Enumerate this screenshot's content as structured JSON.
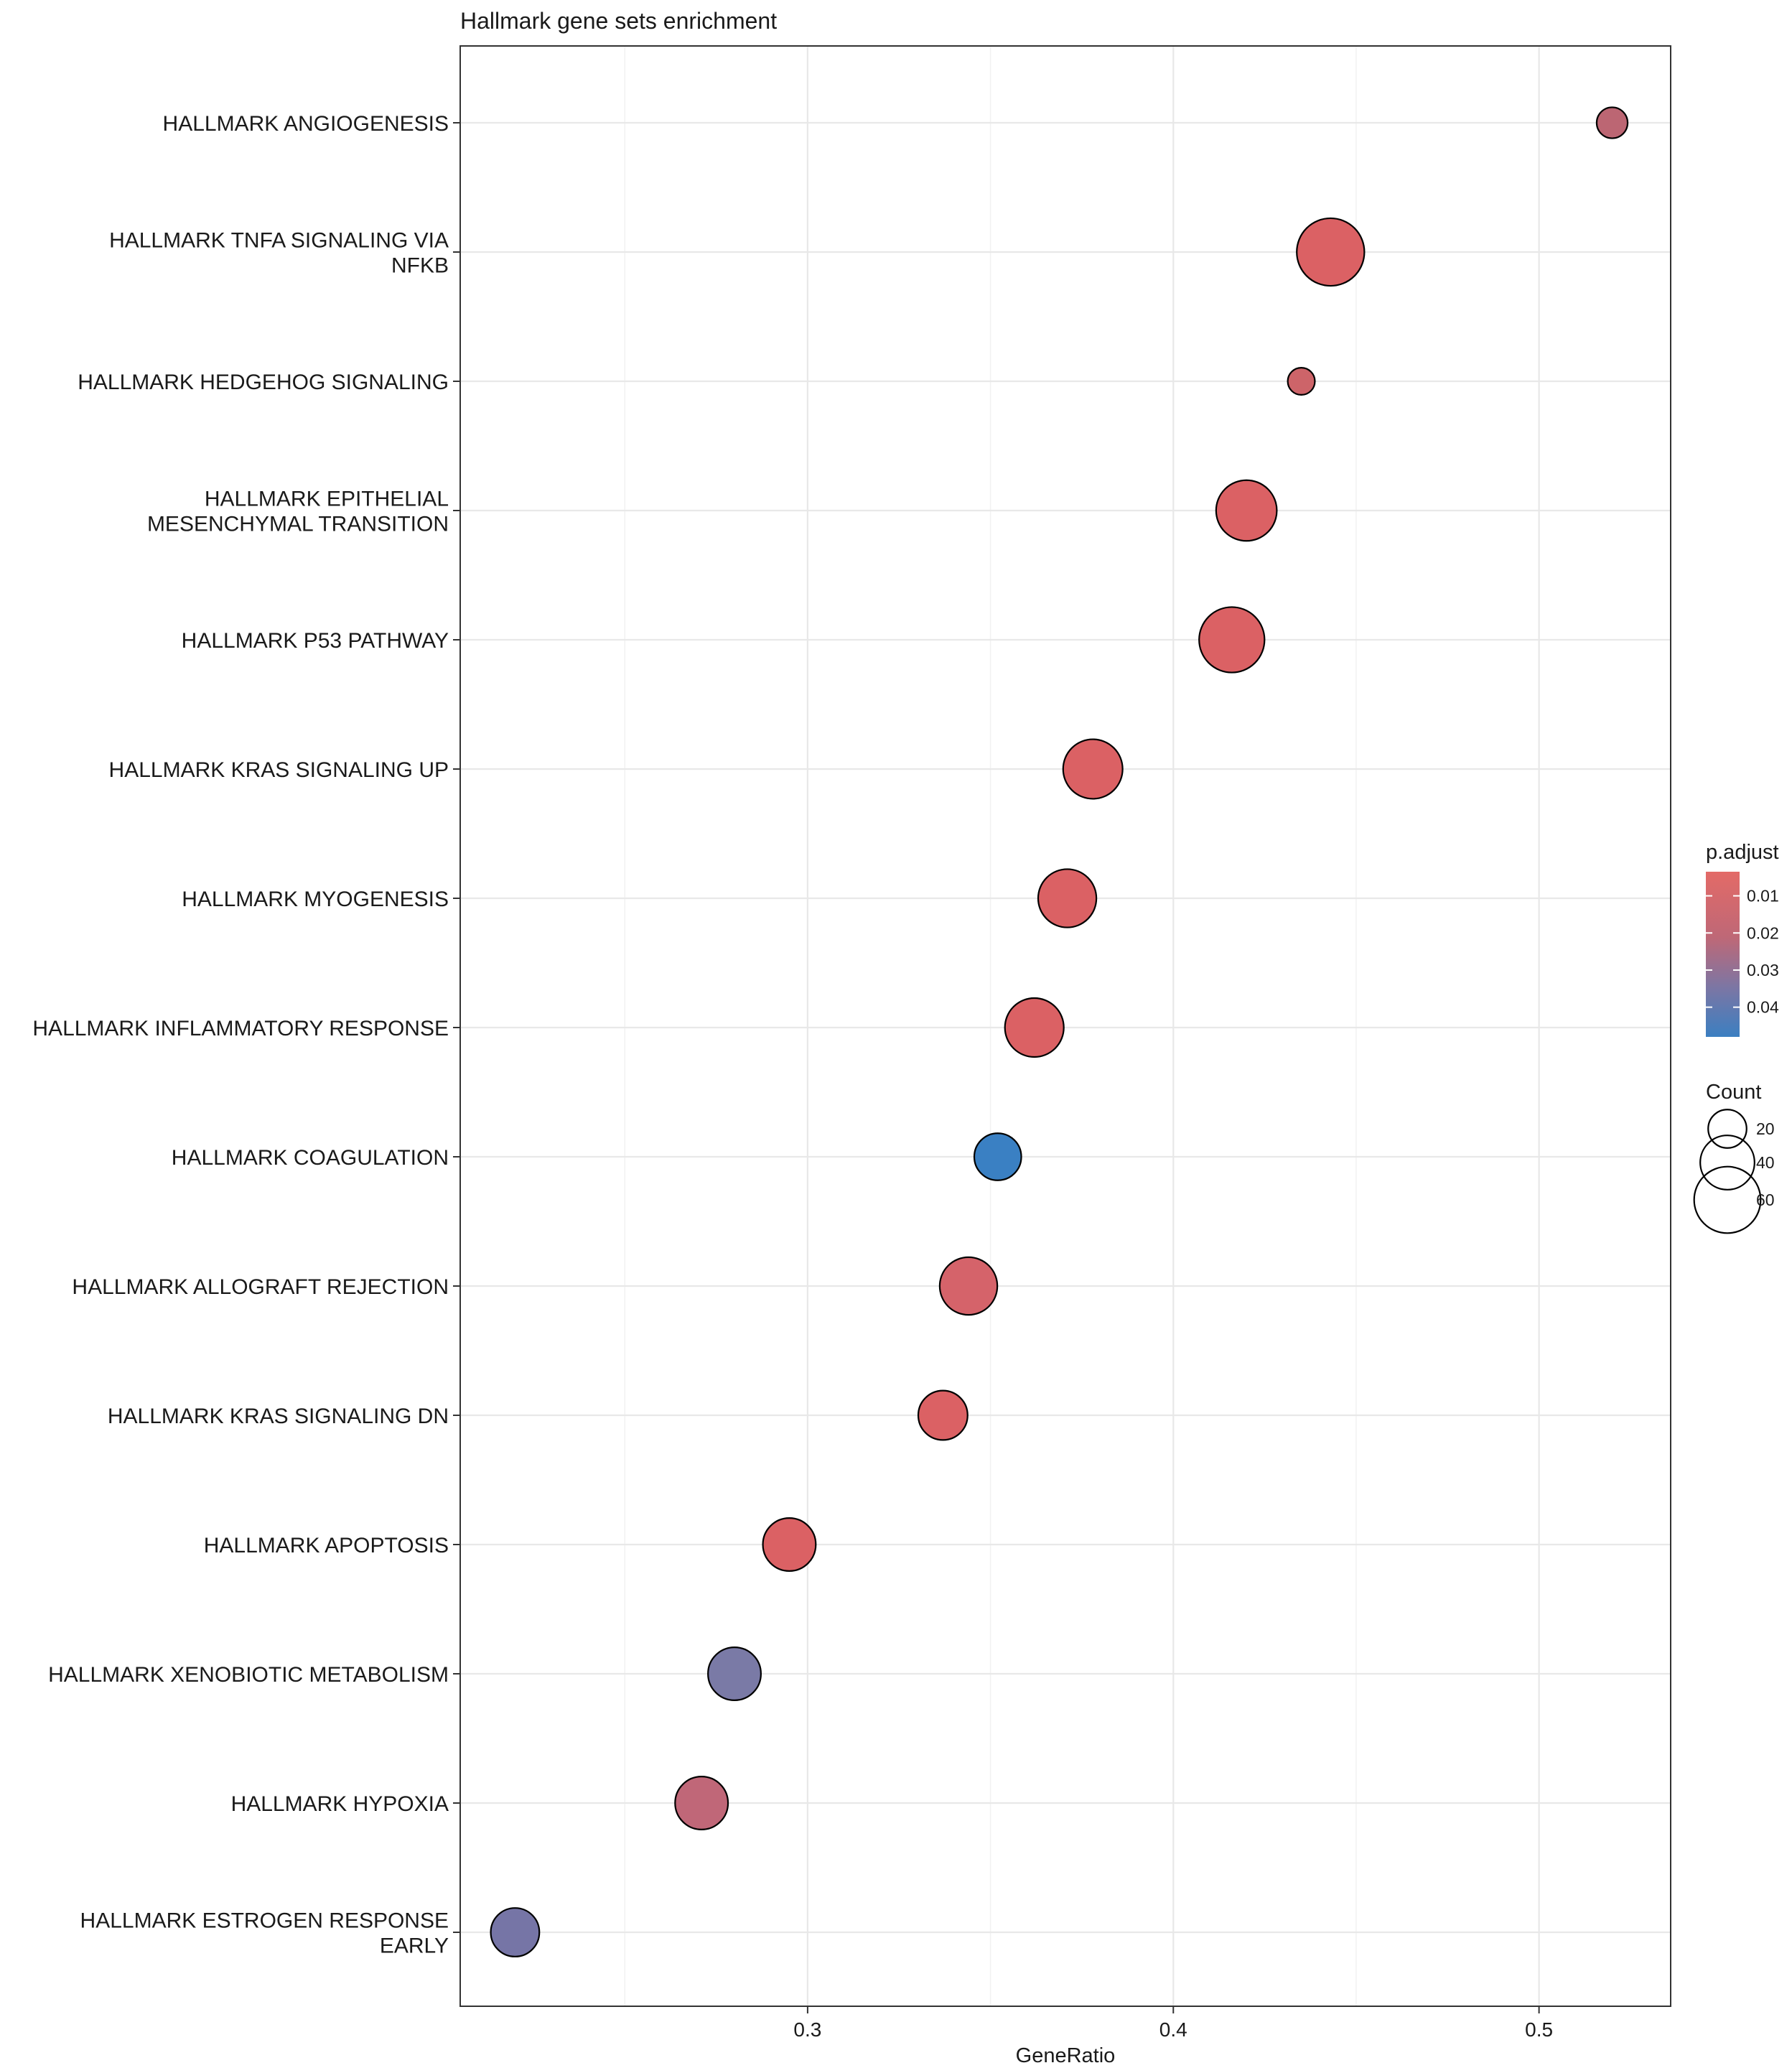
{
  "chart_data": {
    "type": "scatter",
    "title": "Hallmark gene sets enrichment",
    "xlabel": "GeneRatio",
    "ylabel": "",
    "xlim": [
      0.205,
      0.536
    ],
    "xticks": [
      0.3,
      0.4,
      0.5
    ],
    "xtick_labels": [
      "0.3",
      "0.4",
      "0.5"
    ],
    "grid": true,
    "points": [
      {
        "term": "HALLMARK ANGIOGENESIS",
        "lines": [
          "HALLMARK ANGIOGENESIS"
        ],
        "gene_ratio": 0.52,
        "count": 13,
        "p_adjust": 0.017,
        "color": "#BC6673"
      },
      {
        "term": "HALLMARK TNFA SIGNALING VIA NFKB",
        "lines": [
          "HALLMARK TNFA SIGNALING VIA",
          "NFKB"
        ],
        "gene_ratio": 0.443,
        "count": 62,
        "p_adjust": 0.0045,
        "color": "#DB6164"
      },
      {
        "term": "HALLMARK HEDGEHOG SIGNALING",
        "lines": [
          "HALLMARK HEDGEHOG SIGNALING"
        ],
        "gene_ratio": 0.435,
        "count": 10,
        "p_adjust": 0.012,
        "color": "#CD6469"
      },
      {
        "term": "HALLMARK EPITHELIAL MESENCHYMAL TRANSITION",
        "lines": [
          "HALLMARK EPITHELIAL",
          "MESENCHYMAL TRANSITION"
        ],
        "gene_ratio": 0.42,
        "count": 50,
        "p_adjust": 0.004,
        "color": "#DB6164"
      },
      {
        "term": "HALLMARK P53 PATHWAY",
        "lines": [
          "HALLMARK P53 PATHWAY"
        ],
        "gene_ratio": 0.416,
        "count": 58,
        "p_adjust": 0.004,
        "color": "#DB6164"
      },
      {
        "term": "HALLMARK KRAS SIGNALING UP",
        "lines": [
          "HALLMARK KRAS SIGNALING UP"
        ],
        "gene_ratio": 0.378,
        "count": 48,
        "p_adjust": 0.004,
        "color": "#DB6164"
      },
      {
        "term": "HALLMARK MYOGENESIS",
        "lines": [
          "HALLMARK MYOGENESIS"
        ],
        "gene_ratio": 0.371,
        "count": 46,
        "p_adjust": 0.004,
        "color": "#DB6164"
      },
      {
        "term": "HALLMARK INFLAMMATORY RESPONSE",
        "lines": [
          "HALLMARK INFLAMMATORY RESPONSE"
        ],
        "gene_ratio": 0.362,
        "count": 47,
        "p_adjust": 0.004,
        "color": "#DB6164"
      },
      {
        "term": "HALLMARK COAGULATION",
        "lines": [
          "HALLMARK COAGULATION"
        ],
        "gene_ratio": 0.352,
        "count": 30,
        "p_adjust": 0.045,
        "color": "#3A80C3"
      },
      {
        "term": "HALLMARK ALLOGRAFT REJECTION",
        "lines": [
          "HALLMARK ALLOGRAFT REJECTION"
        ],
        "gene_ratio": 0.344,
        "count": 45,
        "p_adjust": 0.006,
        "color": "#D5636A"
      },
      {
        "term": "HALLMARK KRAS SIGNALING DN",
        "lines": [
          "HALLMARK KRAS SIGNALING DN"
        ],
        "gene_ratio": 0.337,
        "count": 33,
        "p_adjust": 0.004,
        "color": "#DB6164"
      },
      {
        "term": "HALLMARK APOPTOSIS",
        "lines": [
          "HALLMARK APOPTOSIS"
        ],
        "gene_ratio": 0.295,
        "count": 38,
        "p_adjust": 0.004,
        "color": "#DB6164"
      },
      {
        "term": "HALLMARK XENOBIOTIC METABOLISM",
        "lines": [
          "HALLMARK XENOBIOTIC METABOLISM"
        ],
        "gene_ratio": 0.28,
        "count": 38,
        "p_adjust": 0.033,
        "color": "#7A7AA6"
      },
      {
        "term": "HALLMARK HYPOXIA",
        "lines": [
          "HALLMARK HYPOXIA"
        ],
        "gene_ratio": 0.271,
        "count": 38,
        "p_adjust": 0.018,
        "color": "#C06778"
      },
      {
        "term": "HALLMARK ESTROGEN RESPONSE EARLY",
        "lines": [
          "HALLMARK ESTROGEN RESPONSE",
          "EARLY"
        ],
        "gene_ratio": 0.22,
        "count": 32,
        "p_adjust": 0.035,
        "color": "#7675A6"
      }
    ],
    "legend": {
      "color": {
        "title": "p.adjust",
        "ticks": [
          0.01,
          0.02,
          0.03,
          0.04
        ],
        "tick_labels": [
          "0.01",
          "0.02",
          "0.03",
          "0.04"
        ],
        "range": [
          0.0035,
          0.048
        ],
        "low_color": "#E36A67",
        "high_color": "#3B7FC1"
      },
      "size": {
        "title": "Count",
        "values": [
          20,
          40,
          60
        ],
        "labels": [
          "20",
          "40",
          "60"
        ]
      },
      "placement": "right"
    }
  }
}
